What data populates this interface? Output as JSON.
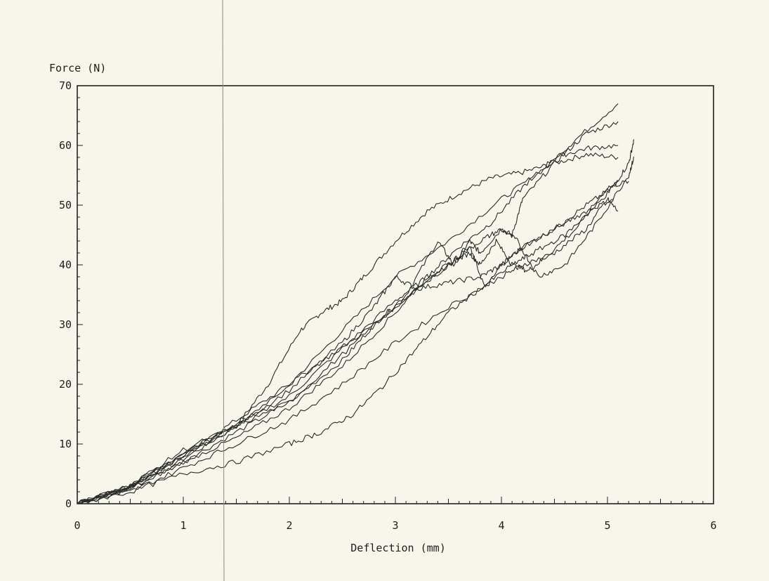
{
  "chart_data": {
    "type": "line",
    "title": "",
    "xlabel": "Deflection (mm)",
    "ylabel": "Force (N)",
    "xlim": [
      0,
      6
    ],
    "ylim": [
      0,
      70
    ],
    "x_ticks": [
      "0",
      "1",
      "2",
      "3",
      "4",
      "5",
      "6"
    ],
    "y_ticks": [
      "0",
      "10",
      "20",
      "30",
      "40",
      "50",
      "60",
      "70"
    ],
    "grid": false,
    "legend": "none",
    "series": [
      {
        "points": [
          [
            0,
            0
          ],
          [
            0.5,
            3
          ],
          [
            1,
            7.5
          ],
          [
            1.5,
            13
          ],
          [
            1.8,
            20
          ],
          [
            2.1,
            29
          ],
          [
            2.3,
            32
          ],
          [
            2.5,
            34
          ],
          [
            2.7,
            38
          ],
          [
            3,
            44
          ],
          [
            3.3,
            49
          ],
          [
            3.6,
            52
          ],
          [
            3.9,
            54.5
          ],
          [
            4.2,
            55.5
          ],
          [
            4.5,
            57
          ],
          [
            4.8,
            58.5
          ],
          [
            5.1,
            58
          ]
        ]
      },
      {
        "points": [
          [
            0,
            0
          ],
          [
            0.5,
            3
          ],
          [
            1,
            8
          ],
          [
            1.5,
            14
          ],
          [
            2,
            20
          ],
          [
            2.5,
            29
          ],
          [
            3,
            38
          ],
          [
            3.5,
            44
          ],
          [
            4,
            51
          ],
          [
            4.4,
            56
          ],
          [
            4.7,
            61
          ],
          [
            5.1,
            67
          ]
        ]
      },
      {
        "points": [
          [
            0,
            0
          ],
          [
            0.5,
            2.5
          ],
          [
            1,
            7
          ],
          [
            1.5,
            12
          ],
          [
            2,
            17
          ],
          [
            2.5,
            24
          ],
          [
            2.8,
            30
          ],
          [
            3.1,
            35
          ],
          [
            3.4,
            44
          ],
          [
            3.55,
            40
          ],
          [
            3.7,
            44
          ],
          [
            3.8,
            42
          ],
          [
            4.0,
            46
          ],
          [
            4.1,
            45
          ],
          [
            4.2,
            51
          ],
          [
            4.5,
            57
          ],
          [
            4.8,
            62
          ],
          [
            5.1,
            64
          ]
        ]
      },
      {
        "points": [
          [
            0,
            0
          ],
          [
            0.5,
            3
          ],
          [
            1,
            8
          ],
          [
            1.5,
            13
          ],
          [
            2,
            18
          ],
          [
            2.5,
            26
          ],
          [
            3,
            34
          ],
          [
            3.3,
            38
          ],
          [
            3.6,
            43
          ],
          [
            3.9,
            47
          ],
          [
            4.2,
            53
          ],
          [
            4.5,
            58
          ],
          [
            4.8,
            59.5
          ],
          [
            5.1,
            60
          ]
        ]
      },
      {
        "points": [
          [
            0,
            0
          ],
          [
            0.5,
            3
          ],
          [
            1,
            8
          ],
          [
            1.5,
            13
          ],
          [
            2,
            19
          ],
          [
            2.5,
            27
          ],
          [
            2.8,
            33
          ],
          [
            3,
            38
          ],
          [
            3.2,
            36
          ],
          [
            3.5,
            37
          ],
          [
            3.8,
            38
          ],
          [
            4.0,
            40
          ],
          [
            4.2,
            43
          ],
          [
            4.5,
            46
          ],
          [
            4.8,
            50
          ],
          [
            5.05,
            53
          ],
          [
            5.2,
            57
          ],
          [
            5.25,
            61
          ]
        ]
      },
      {
        "points": [
          [
            0,
            0
          ],
          [
            0.5,
            2.5
          ],
          [
            1,
            7
          ],
          [
            1.5,
            11
          ],
          [
            2,
            16
          ],
          [
            2.5,
            23
          ],
          [
            3,
            32
          ],
          [
            3.3,
            38
          ],
          [
            3.5,
            40
          ],
          [
            3.7,
            42
          ],
          [
            3.8,
            40
          ],
          [
            3.95,
            44
          ],
          [
            4.1,
            40
          ],
          [
            4.25,
            39
          ],
          [
            4.4,
            41
          ],
          [
            4.7,
            46
          ],
          [
            5.0,
            53
          ],
          [
            5.2,
            54
          ]
        ]
      },
      {
        "points": [
          [
            0,
            0
          ],
          [
            0.5,
            3
          ],
          [
            1,
            8.5
          ],
          [
            1.5,
            13
          ],
          [
            2,
            20
          ],
          [
            2.4,
            25
          ],
          [
            2.8,
            30
          ],
          [
            3.2,
            36
          ],
          [
            3.5,
            40
          ],
          [
            3.7,
            43
          ],
          [
            3.85,
            36
          ],
          [
            4.0,
            40
          ],
          [
            4.2,
            43
          ],
          [
            4.5,
            46
          ],
          [
            4.8,
            49
          ],
          [
            5.05,
            51
          ]
        ]
      },
      {
        "points": [
          [
            0,
            0
          ],
          [
            0.5,
            3
          ],
          [
            1,
            9
          ],
          [
            1.5,
            13
          ],
          [
            2,
            17
          ],
          [
            2.5,
            25
          ],
          [
            3,
            33
          ],
          [
            3.5,
            40
          ],
          [
            3.8,
            44
          ],
          [
            4.0,
            46
          ],
          [
            4.15,
            44
          ],
          [
            4.35,
            38
          ],
          [
            4.6,
            40
          ],
          [
            4.9,
            47
          ],
          [
            5.2,
            55
          ],
          [
            5.25,
            58
          ]
        ]
      },
      {
        "points": [
          [
            0,
            0
          ],
          [
            0.5,
            2
          ],
          [
            1,
            6
          ],
          [
            1.5,
            10
          ],
          [
            2,
            14
          ],
          [
            2.5,
            20
          ],
          [
            3,
            27
          ],
          [
            3.5,
            33
          ],
          [
            4.0,
            38
          ],
          [
            4.2,
            40
          ],
          [
            4.5,
            42
          ],
          [
            4.8,
            46
          ],
          [
            5.0,
            51
          ],
          [
            5.1,
            49
          ]
        ]
      },
      {
        "points": [
          [
            0,
            0
          ],
          [
            0.5,
            2
          ],
          [
            1,
            5
          ],
          [
            1.5,
            7
          ],
          [
            2,
            10
          ],
          [
            2.3,
            12
          ],
          [
            2.6,
            15
          ],
          [
            2.9,
            20
          ],
          [
            3.2,
            26
          ],
          [
            3.5,
            32
          ],
          [
            3.8,
            36
          ],
          [
            4.1,
            40
          ],
          [
            4.3,
            42
          ],
          [
            4.6,
            45
          ],
          [
            4.9,
            50
          ],
          [
            5.1,
            54
          ]
        ]
      }
    ]
  }
}
